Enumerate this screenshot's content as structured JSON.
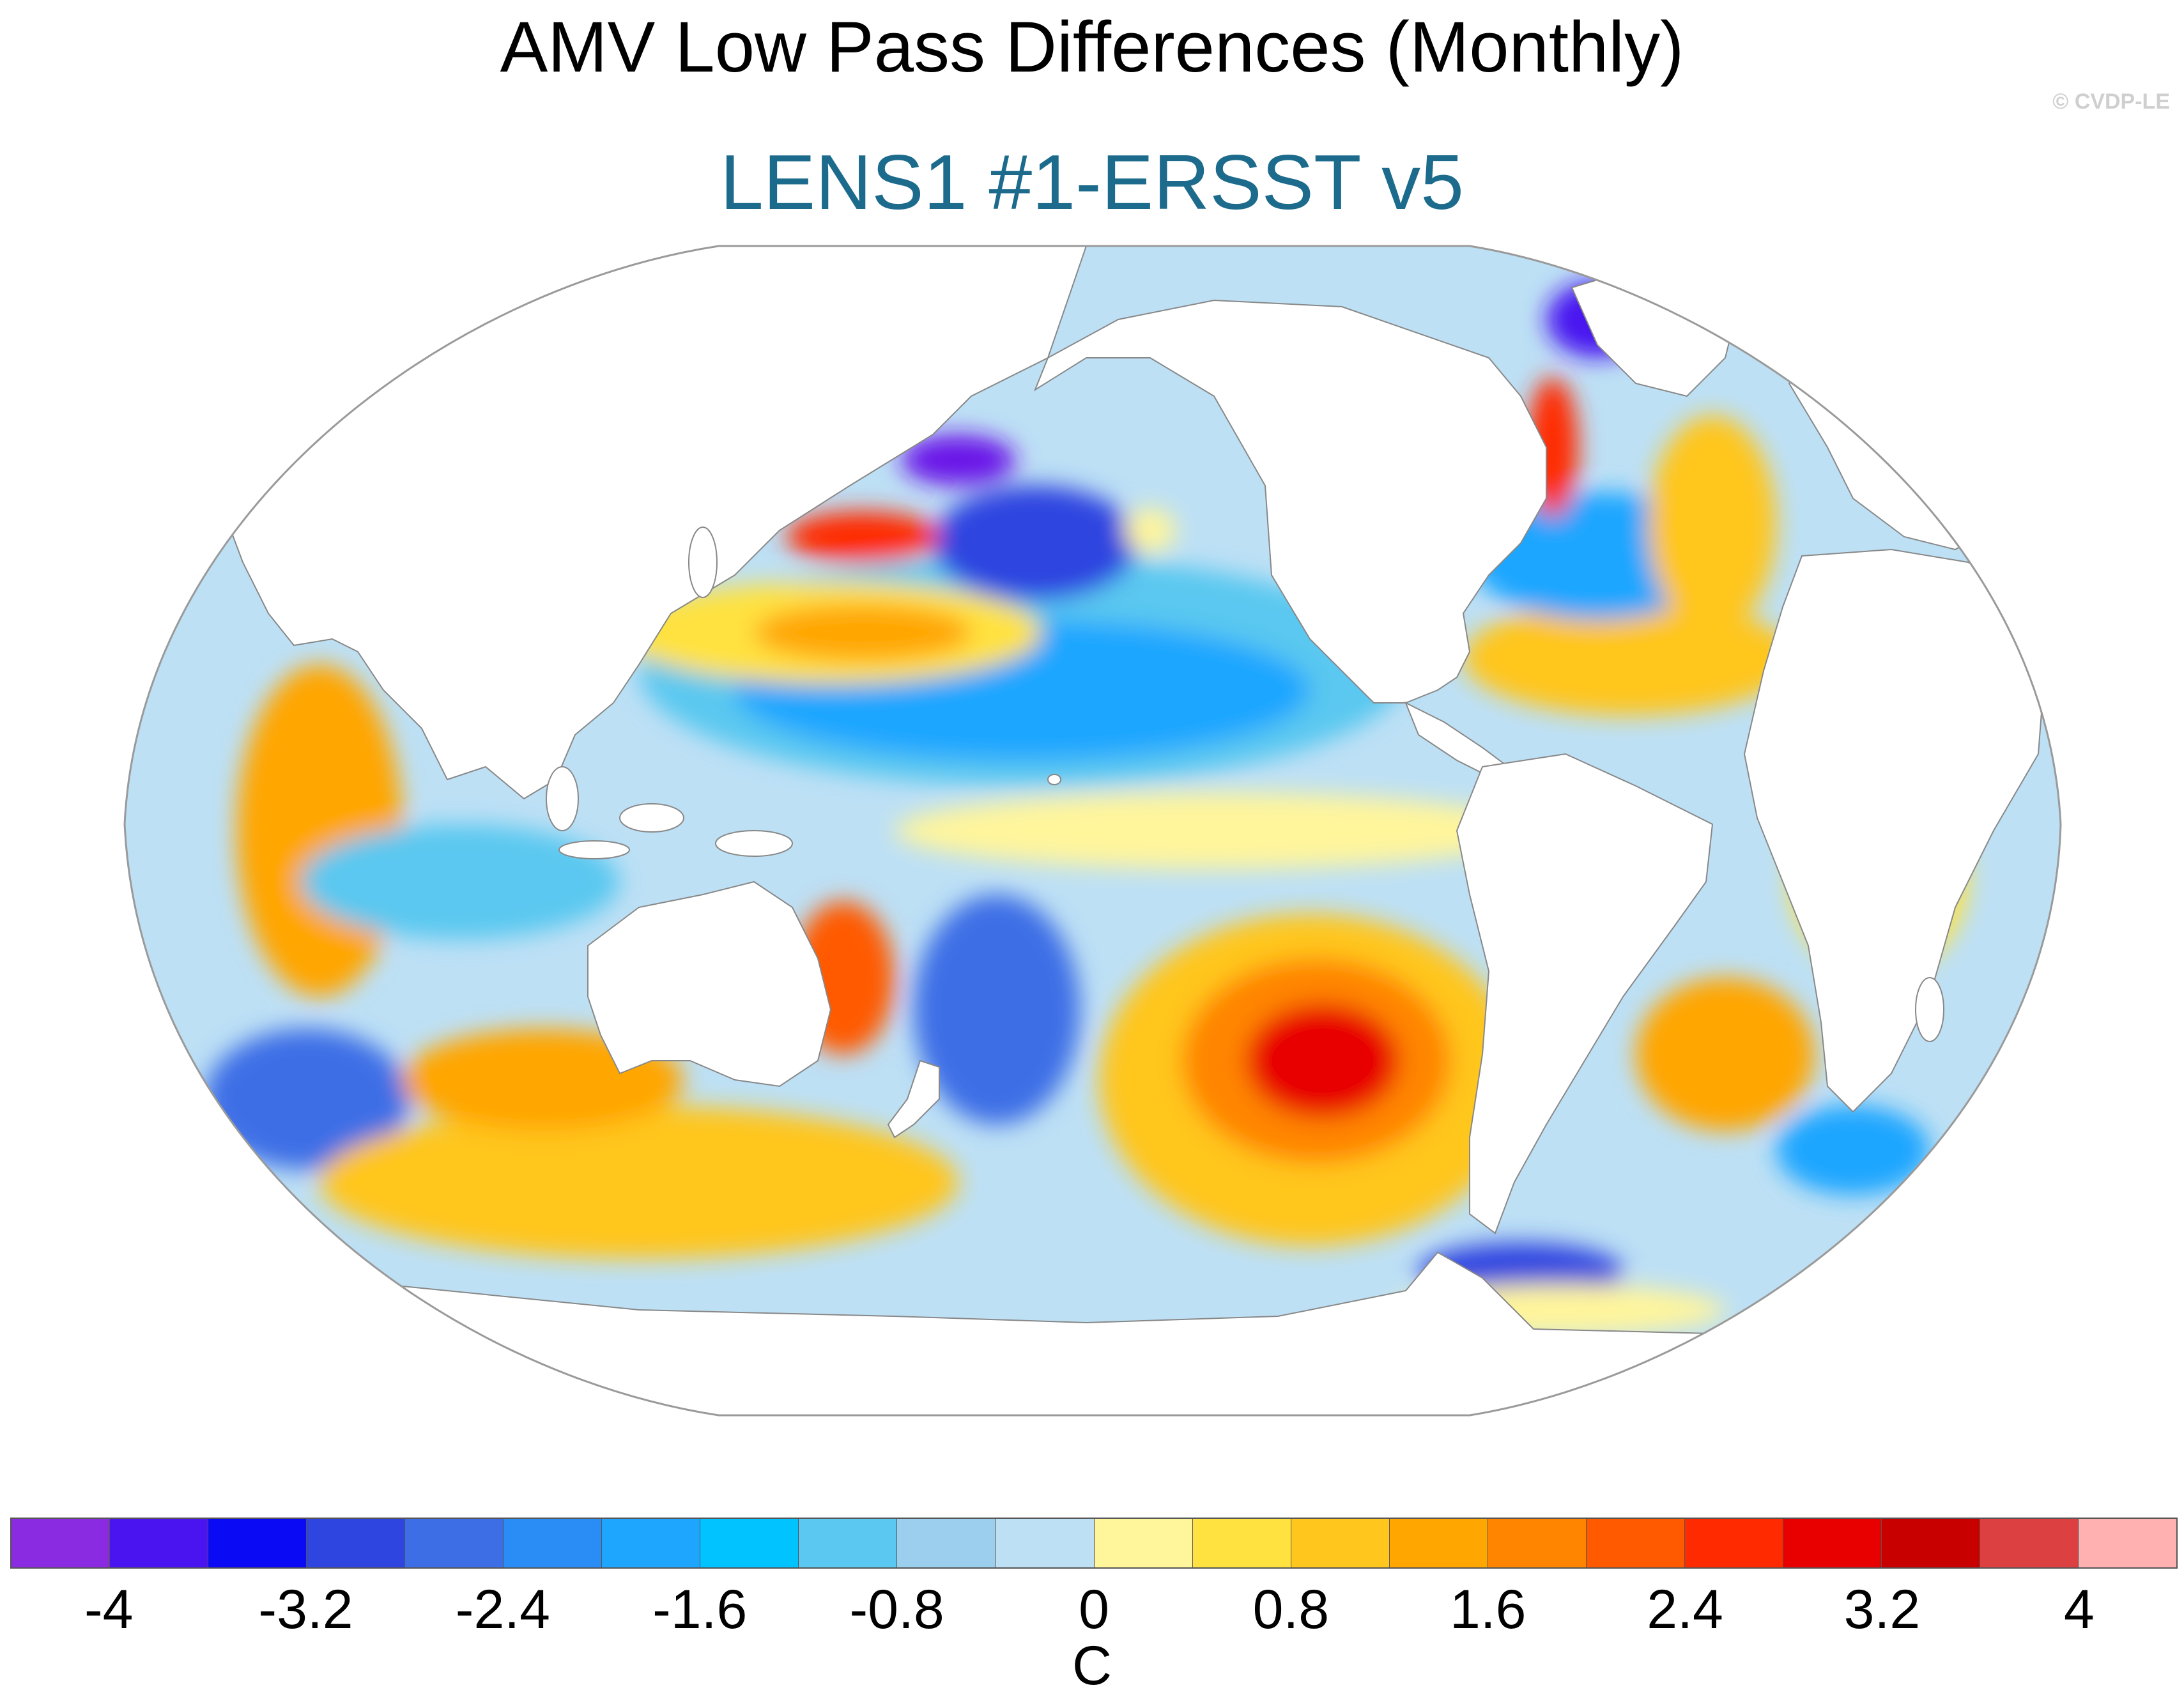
{
  "title": "AMV Low Pass Differences (Monthly)",
  "subtitle": "LENS1 #1-ERSST v5",
  "copyright": "© CVDP-LE",
  "colorbar": {
    "units": "C",
    "tick_labels": [
      "-4",
      "-3.2",
      "-2.4",
      "-1.6",
      "-0.8",
      "0",
      "0.8",
      "1.6",
      "2.4",
      "3.2",
      "4"
    ],
    "colors": [
      "#8a2be2",
      "#4a14f0",
      "#0a0af5",
      "#2e45e0",
      "#3e6ee6",
      "#2a8cf5",
      "#1ea6ff",
      "#00c3ff",
      "#5ac8f0",
      "#9ccfee",
      "#bde0f5",
      "#fff59b",
      "#ffe240",
      "#ffc61e",
      "#ffa600",
      "#ff8500",
      "#ff5a00",
      "#ff2a00",
      "#e80000",
      "#c80000",
      "#dd4040",
      "#ffb0b0"
    ]
  },
  "map": {
    "projection": "Robinson",
    "variable": "SST difference"
  }
}
